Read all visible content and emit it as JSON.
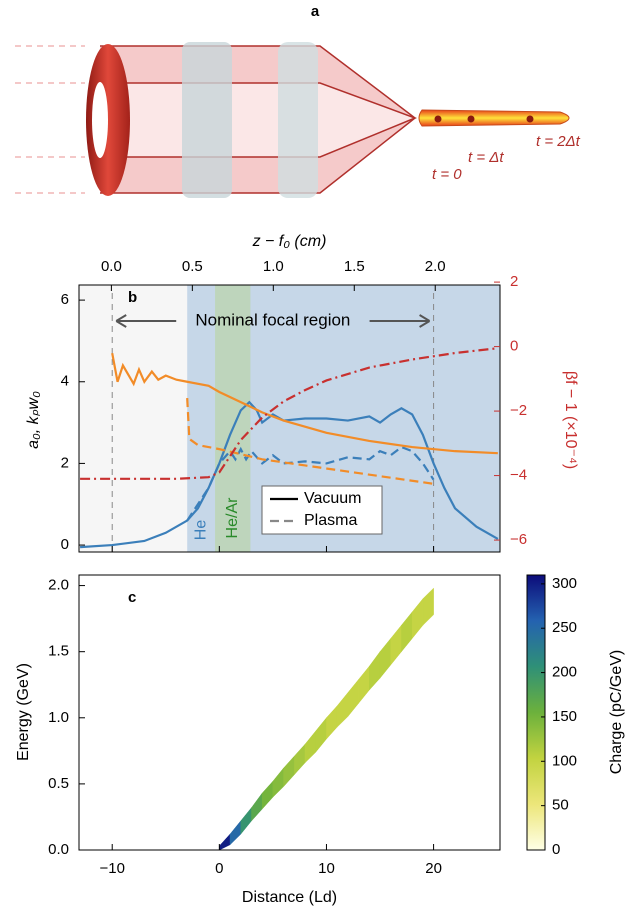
{
  "diagram": {
    "label": "a",
    "times": [
      "t = 0",
      "t = Δt",
      "t = 2Δt"
    ]
  },
  "chart_data": [
    {
      "type": "line",
      "label": "b",
      "x2label": "z − f₀ (cm)",
      "ylabel": "a₀, kₚw₀",
      "y2label": "βf − 1 (×10⁻⁴)",
      "xlim": [
        -13.1,
        26.2
      ],
      "xticks": [
        -10,
        0,
        10,
        20
      ],
      "x2lim": [
        -0.2,
        2.4
      ],
      "x2ticks": [
        {
          "value": 0,
          "label": "0.0"
        },
        {
          "value": 0.5,
          "label": "0.5"
        },
        {
          "value": 1,
          "label": "1.0"
        },
        {
          "value": 1.5,
          "label": "1.5"
        },
        {
          "value": 2,
          "label": "2.0"
        }
      ],
      "ylim": [
        -0.17,
        6.37
      ],
      "yticks": [
        0,
        2,
        4,
        6
      ],
      "y2lim": [
        -6.37,
        1.91
      ],
      "y2ticks": [
        2,
        0,
        {
          "value": -2,
          "label": "−2"
        },
        {
          "value": -4,
          "label": "−4"
        },
        {
          "value": -6,
          "label": "−6"
        }
      ],
      "regions": [
        {
          "label": "He",
          "x": [
            -3.0,
            26.2
          ],
          "color": "#c6d7e8"
        },
        {
          "label": "He/Ar",
          "x": [
            -0.4,
            2.9
          ],
          "color": "#bcd5b4"
        }
      ],
      "annotation": {
        "text": "Nominal focal region",
        "x": [
          -10,
          20
        ]
      },
      "legend": [
        {
          "label": "Vacuum",
          "dash": "solid"
        },
        {
          "label": "Plasma",
          "dash": "dashed"
        }
      ],
      "series": [
        {
          "color": "#3b7fba",
          "dash": "solid",
          "x": [
            -13,
            -10,
            -7,
            -5,
            -3,
            -2,
            -1,
            0,
            1,
            2,
            2.8,
            3.5,
            4,
            5,
            6,
            8,
            10,
            12,
            14,
            15,
            16,
            17,
            18,
            19,
            20,
            21,
            22,
            24,
            26
          ],
          "values": [
            -0.05,
            0,
            0.1,
            0.3,
            0.6,
            0.9,
            1.4,
            2.0,
            2.7,
            3.3,
            3.5,
            3.3,
            3.0,
            3.2,
            3.05,
            3.1,
            3.1,
            3.05,
            3.15,
            3.0,
            3.2,
            3.35,
            3.2,
            2.7,
            2.0,
            1.4,
            0.9,
            0.45,
            0.15
          ]
        },
        {
          "color": "#3b7fba",
          "dash": "dashed",
          "x": [
            -3,
            -1,
            0,
            1,
            1.5,
            2,
            2.5,
            3,
            4,
            5,
            6,
            8,
            10,
            12,
            14,
            15,
            16,
            17,
            18,
            19,
            20
          ],
          "values": [
            0.6,
            1.4,
            2.0,
            2.3,
            2.1,
            2.35,
            2.1,
            2.3,
            2.0,
            2.2,
            2.0,
            2.05,
            2.0,
            2.15,
            2.1,
            2.3,
            2.2,
            2.4,
            2.3,
            2.0,
            1.6
          ]
        },
        {
          "color": "#f28c28",
          "dash": "solid",
          "x": [
            -10,
            -9.5,
            -9,
            -8,
            -7.5,
            -7,
            -6.3,
            -5.7,
            -5,
            -4,
            -3,
            -1,
            0,
            2,
            4,
            6,
            8,
            10,
            14,
            18,
            22,
            26
          ],
          "values": [
            4.7,
            4.0,
            4.4,
            3.95,
            4.3,
            4.0,
            4.25,
            4.05,
            4.15,
            4.05,
            4.0,
            3.9,
            3.75,
            3.5,
            3.25,
            3.05,
            2.9,
            2.75,
            2.55,
            2.4,
            2.3,
            2.25
          ]
        },
        {
          "color": "#f28c28",
          "dash": "dashed",
          "x": [
            -3,
            -2.8,
            -2,
            0,
            4,
            8,
            12,
            16,
            20
          ],
          "values": [
            3.6,
            2.6,
            2.45,
            2.35,
            2.1,
            1.95,
            1.8,
            1.65,
            1.5
          ]
        },
        {
          "color": "#c8302f",
          "dash": "dashdot",
          "axis": "y2",
          "x": [
            -13,
            -4,
            -1,
            0,
            1,
            2,
            4,
            6,
            8,
            10,
            14,
            18,
            22,
            26
          ],
          "values": [
            -4.1,
            -4.1,
            -4.05,
            -3.9,
            -3.4,
            -2.9,
            -2.2,
            -1.7,
            -1.35,
            -1.05,
            -0.65,
            -0.4,
            -0.2,
            -0.05
          ]
        }
      ]
    },
    {
      "type": "heatmap",
      "label": "c",
      "xlabel": "Distance (Ld)",
      "ylabel": "Energy (GeV)",
      "zlabel": "Charge (pC/GeV)",
      "xlim": [
        -13.1,
        26.2
      ],
      "xticks": [
        {
          "value": -10,
          "label": "−10"
        },
        0,
        10,
        20
      ],
      "ylim": [
        0,
        2.08
      ],
      "yticks": [
        {
          "value": 0,
          "label": "0.0"
        },
        {
          "value": 0.5,
          "label": "0.5"
        },
        {
          "value": 1,
          "label": "1.0"
        },
        {
          "value": 1.5,
          "label": "1.5"
        },
        {
          "value": 2,
          "label": "2.0"
        }
      ],
      "zlim": [
        0,
        310
      ],
      "zticks": [
        0,
        50,
        100,
        150,
        200,
        250,
        300
      ],
      "colormap": [
        "#ffffe6",
        "#ece67a",
        "#c2d340",
        "#6cb13c",
        "#2f9077",
        "#2462b0",
        "#0c0c7a"
      ],
      "x": [
        0,
        1,
        2,
        3,
        4,
        5,
        6,
        7,
        8,
        9,
        10,
        11,
        12,
        13,
        14,
        15,
        16,
        17,
        18,
        19,
        20
      ],
      "energy": [
        0,
        0.08,
        0.17,
        0.27,
        0.37,
        0.46,
        0.55,
        0.64,
        0.73,
        0.82,
        0.92,
        1.01,
        1.1,
        1.2,
        1.3,
        1.4,
        1.5,
        1.6,
        1.7,
        1.8,
        1.88
      ],
      "charge": [
        300,
        250,
        200,
        170,
        150,
        140,
        130,
        120,
        110,
        110,
        100,
        100,
        100,
        100,
        110,
        110,
        100,
        110,
        100,
        100,
        90
      ],
      "spread": [
        0.03,
        0.04,
        0.05,
        0.05,
        0.06,
        0.06,
        0.07,
        0.07,
        0.07,
        0.08,
        0.08,
        0.08,
        0.09,
        0.09,
        0.09,
        0.1,
        0.1,
        0.1,
        0.1,
        0.1,
        0.1
      ]
    }
  ]
}
